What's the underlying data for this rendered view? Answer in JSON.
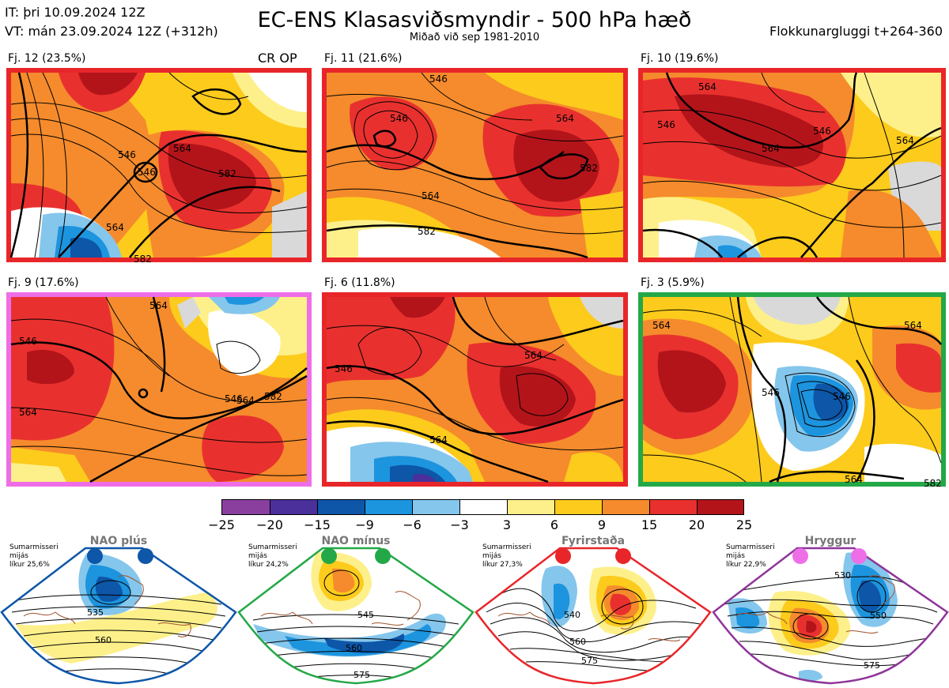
{
  "header": {
    "it": "IT: þri 10.09.2024 12Z",
    "vt": "VT: mán 23.09.2024 12Z  (+312h)",
    "title": "EC-ENS Klasasviðsmyndir - 500 hPa hæð",
    "subtitle": "Miðað við sep 1981-2010",
    "window": "Flokkunargluggi t+264-360"
  },
  "panels": [
    {
      "label": "Fj. 12 (23.5%)",
      "tag": "CR OP",
      "border_color": "#e8262a",
      "contours": [
        "546",
        "546",
        "564",
        "582",
        "564",
        "582"
      ]
    },
    {
      "label": "Fj. 11 (21.6%)",
      "tag": "",
      "border_color": "#e8262a",
      "contours": [
        "546",
        "546",
        "564",
        "582",
        "564",
        "582"
      ]
    },
    {
      "label": "Fj. 10 (19.6%)",
      "tag": "",
      "border_color": "#e8262a",
      "contours": [
        "546",
        "564",
        "546",
        "564",
        "564"
      ]
    },
    {
      "label": "Fj. 9 (17.6%)",
      "tag": "",
      "border_color": "#ee6ee8",
      "contours": [
        "546",
        "564",
        "546",
        "564",
        "582",
        "564"
      ]
    },
    {
      "label": "Fj. 6 (11.8%)",
      "tag": "",
      "border_color": "#e8262a",
      "contours": [
        "546",
        "564",
        "564"
      ]
    },
    {
      "label": "Fj. 3 (5.9%)",
      "tag": "",
      "border_color": "#23a847",
      "contours": [
        "564",
        "546",
        "564",
        "546",
        "564",
        "582"
      ]
    }
  ],
  "colorbar": {
    "colors": [
      "#8a3f9e",
      "#4b2f9a",
      "#0d56a8",
      "#1d94de",
      "#85c6ec",
      "#ffffff",
      "#fdf08b",
      "#fccb1c",
      "#f58b2c",
      "#e8312e",
      "#b3141a"
    ],
    "ticks": [
      "−25",
      "−20",
      "−15",
      "−9",
      "−6",
      "−3",
      "3",
      "6",
      "9",
      "15",
      "20",
      "25"
    ]
  },
  "regimes": [
    {
      "title": "NAO plús",
      "season": "Sumarmisseri",
      "freq_label": "mijás",
      "prob": "líkur 25,6%",
      "color": "#0d56a8",
      "contours": [
        "535",
        "560"
      ]
    },
    {
      "title": "NAO mínus",
      "season": "Sumarmisseri",
      "freq_label": "mijás",
      "prob": "líkur 24,2%",
      "color": "#23a847",
      "contours": [
        "545",
        "560",
        "575"
      ]
    },
    {
      "title": "Fyrirstaða",
      "season": "Sumarmisseri",
      "freq_label": "mijás",
      "prob": "líkur 27,3%",
      "color": "#e8262a",
      "contours": [
        "540",
        "560",
        "575"
      ]
    },
    {
      "title": "Hryggur",
      "season": "Sumarmisseri",
      "freq_label": "mijás",
      "prob": "líkur 22,9%",
      "color": "#ee6ee8",
      "contours": [
        "530",
        "550",
        "575"
      ]
    }
  ]
}
